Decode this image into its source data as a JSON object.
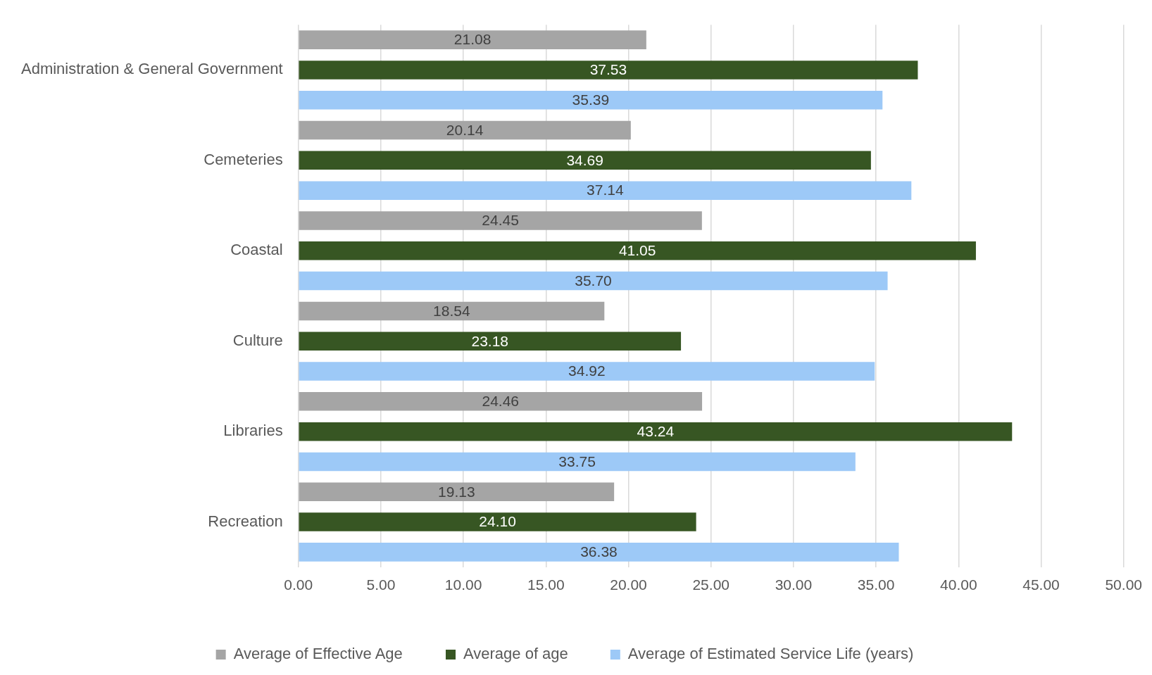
{
  "chart_data": {
    "type": "bar",
    "orientation": "horizontal",
    "categories": [
      "Administration & General Government",
      "Cemeteries",
      "Coastal",
      "Culture",
      "Libraries",
      "Recreation"
    ],
    "series": [
      {
        "name": "Average of Effective Age",
        "color": "#a5a5a5",
        "values": [
          21.08,
          20.14,
          24.45,
          18.54,
          24.46,
          19.13
        ],
        "value_labels": [
          "21.08",
          "20.14",
          "24.45",
          "18.54",
          "24.46",
          "19.13"
        ]
      },
      {
        "name": "Average of age",
        "color": "#375623",
        "values": [
          37.53,
          34.69,
          41.05,
          23.18,
          43.24,
          24.1
        ],
        "value_labels": [
          "37.53",
          "34.69",
          "41.05",
          "23.18",
          "43.24",
          "24.10"
        ]
      },
      {
        "name": "Average of Estimated Service Life (years)",
        "color": "#9dc9f7",
        "values": [
          35.39,
          37.14,
          35.7,
          34.92,
          33.75,
          36.38
        ],
        "value_labels": [
          "35.39",
          "37.14",
          "35.70",
          "34.92",
          "33.75",
          "36.38"
        ]
      }
    ],
    "xlim": [
      0,
      50
    ],
    "xticks": [
      {
        "value": 0,
        "label": "0.00"
      },
      {
        "value": 5,
        "label": "5.00"
      },
      {
        "value": 10,
        "label": "10.00"
      },
      {
        "value": 15,
        "label": "15.00"
      },
      {
        "value": 20,
        "label": "20.00"
      },
      {
        "value": 25,
        "label": "25.00"
      },
      {
        "value": 30,
        "label": "30.00"
      },
      {
        "value": 35,
        "label": "35.00"
      },
      {
        "value": 40,
        "label": "40.00"
      },
      {
        "value": 45,
        "label": "45.00"
      },
      {
        "value": 50,
        "label": "50.00"
      }
    ],
    "grid": "x",
    "legend": "bottom"
  }
}
